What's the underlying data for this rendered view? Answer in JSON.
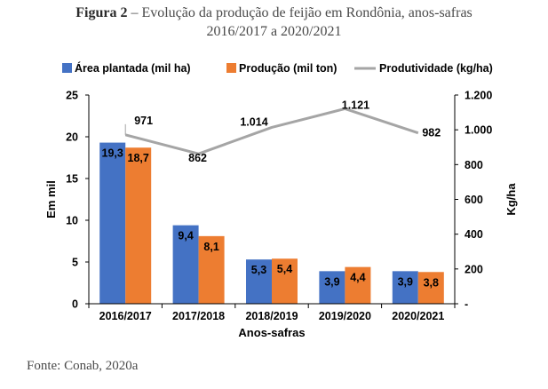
{
  "caption": {
    "label": "Figura 2",
    "dash": " – ",
    "line1_rest": "Evolução da produção de feijão em Rondônia, anos-safras",
    "line2": "2016/2017 a 2020/2021"
  },
  "source": "Fonte: Conab, 2020a",
  "chart_data": {
    "type": "bar",
    "categories": [
      "2016/2017",
      "2017/2018",
      "2018/2019",
      "2019/2020",
      "2020/2021"
    ],
    "series": [
      {
        "name": "Área plantada (mil ha)",
        "kind": "bar",
        "axis": "left",
        "color": "#4472c4",
        "values": [
          19.3,
          9.4,
          5.3,
          3.9,
          3.9
        ],
        "labels": [
          "19,3",
          "9,4",
          "5,3",
          "3,9",
          "3,9"
        ]
      },
      {
        "name": "Produção (mil ton)",
        "kind": "bar",
        "axis": "left",
        "color": "#ed7d31",
        "values": [
          18.7,
          8.1,
          5.4,
          4.4,
          3.8
        ],
        "labels": [
          "18,7",
          "8,1",
          "5,4",
          "4,4",
          "3,8"
        ]
      },
      {
        "name": "Produtividade (kg/ha)",
        "kind": "line",
        "axis": "right",
        "color": "#a5a5a5",
        "values": [
          971,
          862,
          1014,
          1121,
          982
        ],
        "labels": [
          "971",
          "862",
          "1.014",
          "1.121",
          "982"
        ]
      }
    ],
    "xlabel": "Anos-safras",
    "ylabel": "Em mil",
    "y2label": "Kg/ha",
    "ylim": [
      0,
      25
    ],
    "yticks": [
      "0",
      "5",
      "10",
      "15",
      "20",
      "25"
    ],
    "y2lim": [
      0,
      1200
    ],
    "y2ticks": [
      "-",
      "200",
      "400",
      "600",
      "800",
      "1.000",
      "1.200"
    ],
    "legend_position": "top",
    "grid": false
  }
}
